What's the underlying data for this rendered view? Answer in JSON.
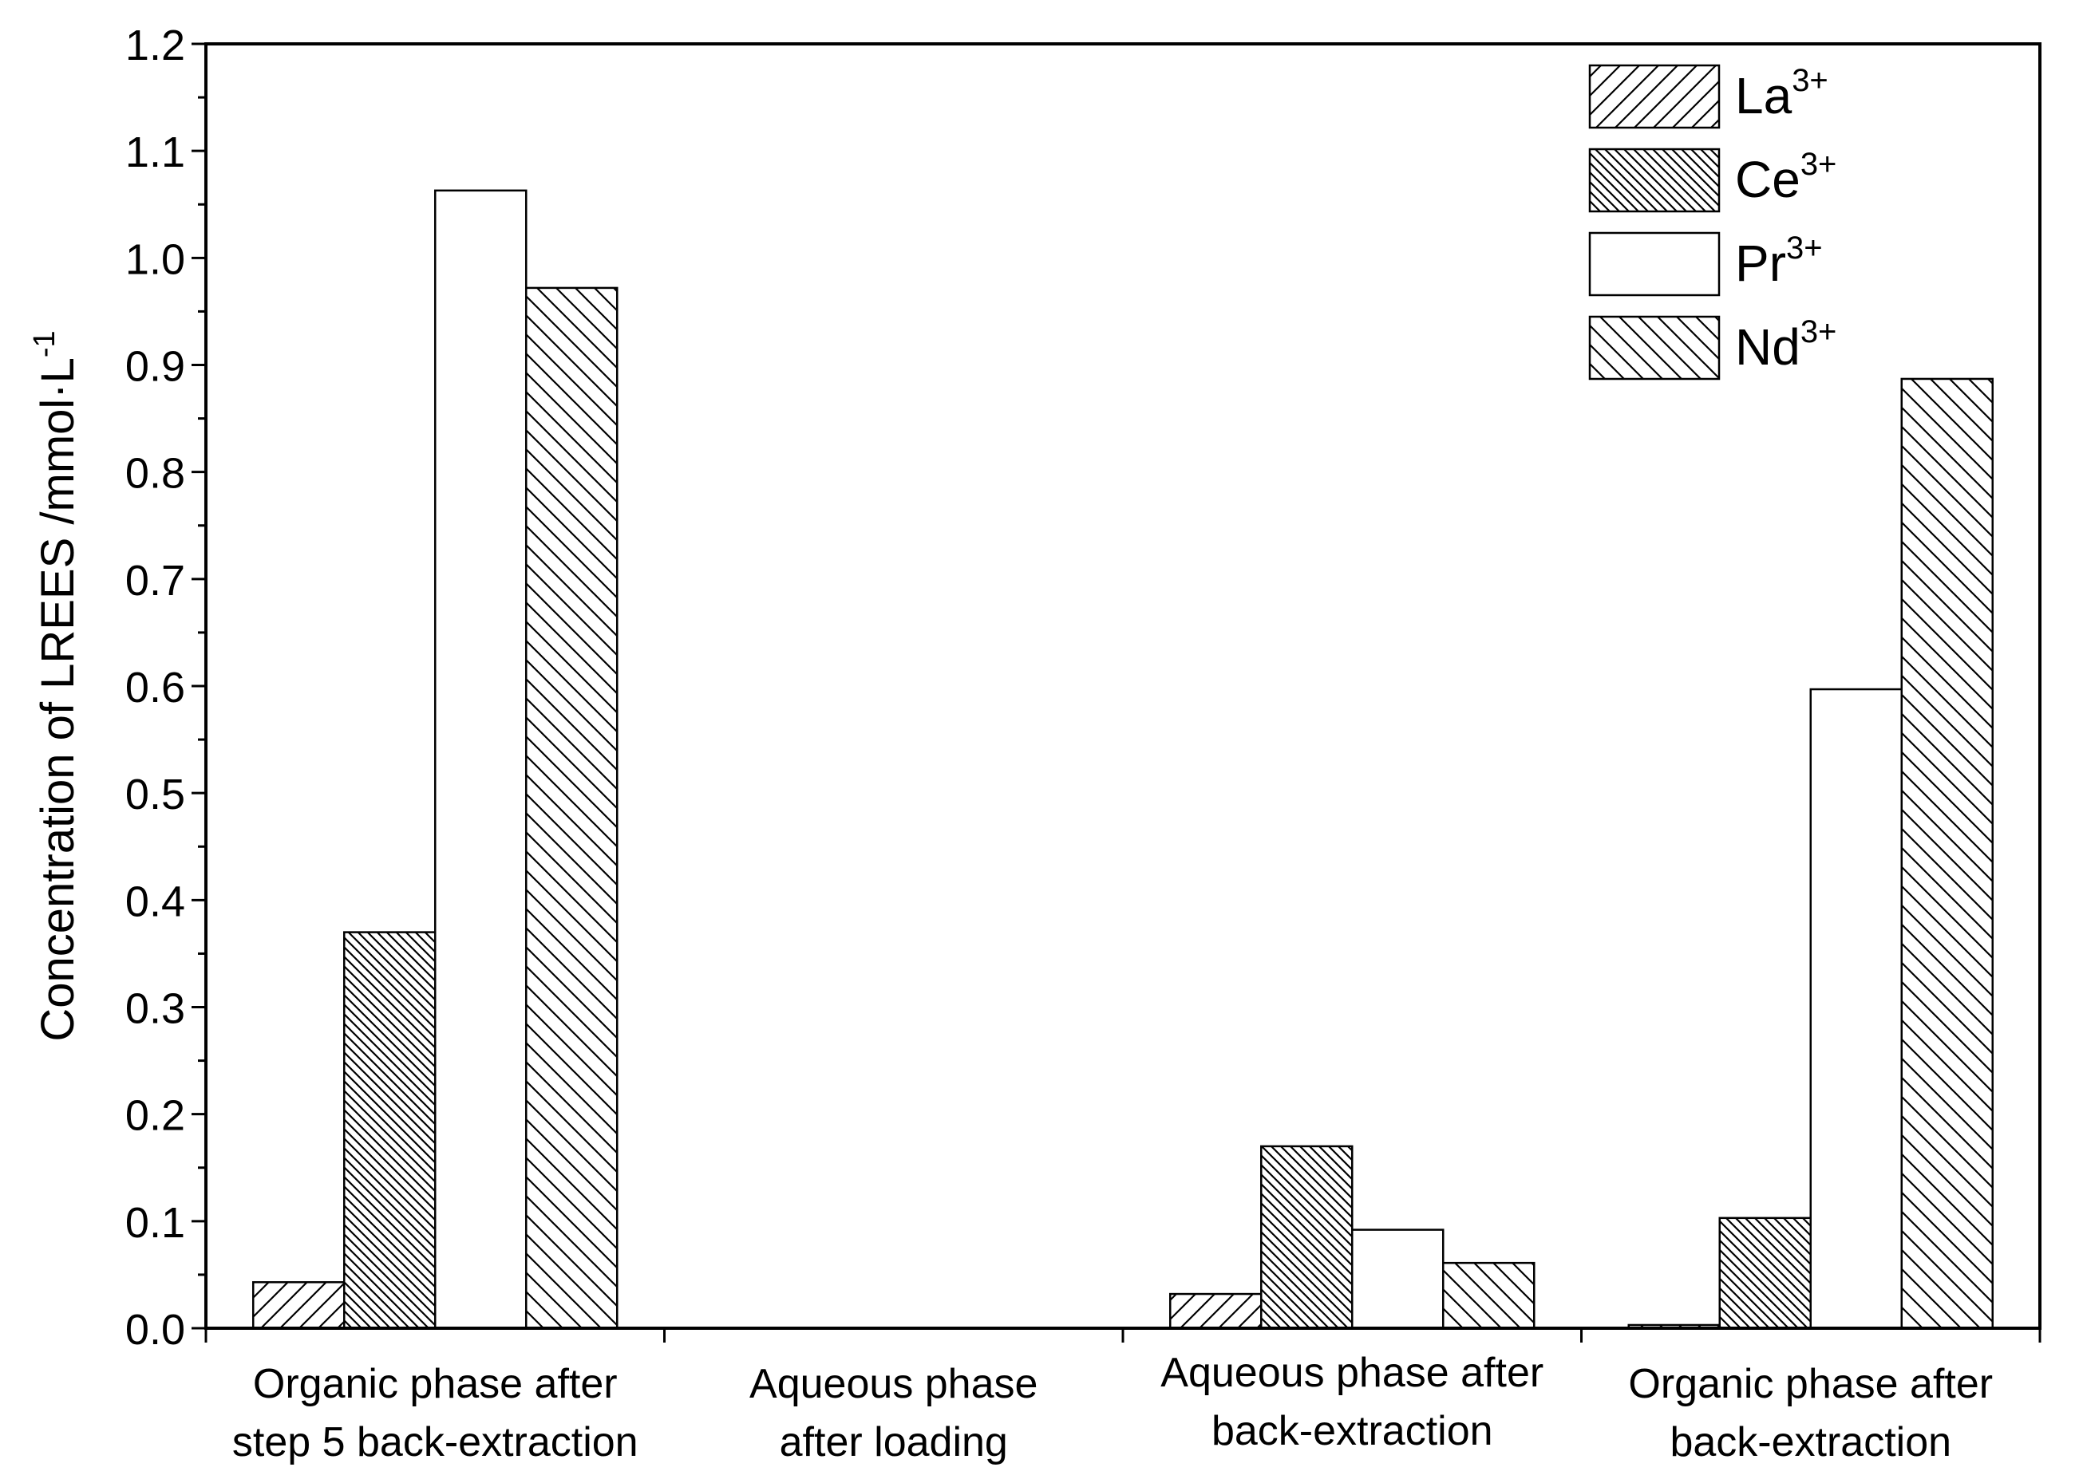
{
  "chart_data": {
    "type": "bar",
    "xlabel": "",
    "ylabel": "Concentration of LREES /mmol·L",
    "ylabel_sup": "-1",
    "ylim": [
      0,
      1.2
    ],
    "yticks": [
      "0.0",
      "0.1",
      "0.2",
      "0.3",
      "0.4",
      "0.5",
      "0.6",
      "0.7",
      "0.8",
      "0.9",
      "1.0",
      "1.1",
      "1.2"
    ],
    "grid": false,
    "legend_position": "top-right",
    "categories": [
      [
        "Organic phase after",
        "step 5 back-extraction"
      ],
      [
        "Aqueous phase",
        "after loading"
      ],
      [
        "Aqueous phase after",
        "back-extraction"
      ],
      [
        "Organic phase after",
        "back-extraction"
      ]
    ],
    "series": [
      {
        "name": "La",
        "name_sup": "3+",
        "pattern": "hatch-forward",
        "values": [
          0.043,
          0,
          0.032,
          0.003
        ]
      },
      {
        "name": "Ce",
        "name_sup": "3+",
        "pattern": "hatch-dense-back",
        "values": [
          0.37,
          0,
          0.17,
          0.103
        ]
      },
      {
        "name": "Pr",
        "name_sup": "3+",
        "pattern": "none",
        "values": [
          1.063,
          0,
          0.092,
          0.597
        ]
      },
      {
        "name": "Nd",
        "name_sup": "3+",
        "pattern": "hatch-back",
        "values": [
          0.972,
          0,
          0.061,
          0.887
        ]
      }
    ]
  }
}
